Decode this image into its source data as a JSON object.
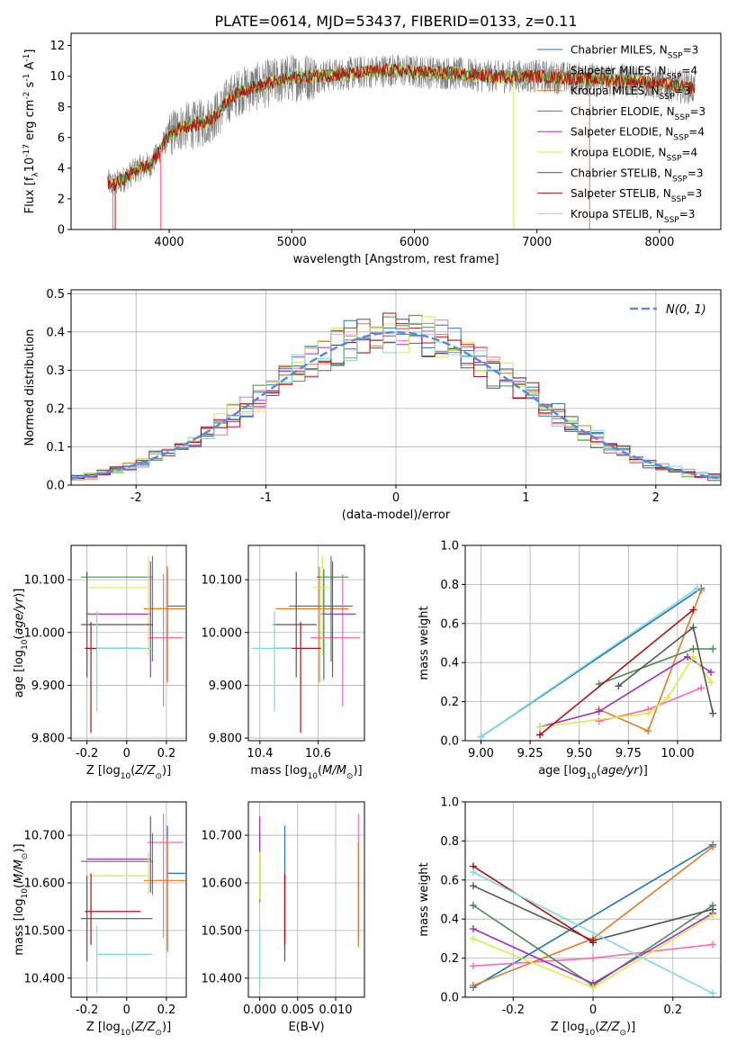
{
  "title": "PLATE=0614, MJD=53437, FIBERID=0133, z=0.11",
  "series": [
    {
      "name": "Chabrier MILES, N$_{SSP}$=3",
      "color": "#1f77b4"
    },
    {
      "name": "Salpeter MILES, N$_{SSP}$=4",
      "color": "#ff69b4"
    },
    {
      "name": "Kroupa MILES, N$_{SSP}$=3",
      "color": "#e07b28"
    },
    {
      "name": "Chabrier ELODIE, N$_{SSP}$=3",
      "color": "#4f8a57"
    },
    {
      "name": "Salpeter ELODIE, N$_{SSP}$=4",
      "color": "#a030b8"
    },
    {
      "name": "Kroupa ELODIE, N$_{SSP}$=4",
      "color": "#d6ec4a"
    },
    {
      "name": "Chabrier STELIB, N$_{SSP}$=3",
      "color": "#555555"
    },
    {
      "name": "Salpeter STELIB, N$_{SSP}$=3",
      "color": "#b01010"
    },
    {
      "name": "Kroupa STELIB, N$_{SSP}$=3",
      "color": "#7fd8e0"
    }
  ],
  "chart_data": [
    {
      "type": "line",
      "id": "spectrum",
      "title": "PLATE=0614, MJD=53437, FIBERID=0133, z=0.11",
      "xlabel": "wavelength [Angstrom, rest frame]",
      "ylabel": "Flux [f$_\\lambda$10$^{-17}$ erg cm$^{-2}$ s$^{-1}$ A$^{-1}$]",
      "xlim": [
        3200,
        8500
      ],
      "ylim": [
        0,
        12.8
      ],
      "xticks": [
        4000,
        5000,
        6000,
        7000,
        8000
      ],
      "yticks": [
        0,
        2,
        4,
        6,
        8,
        10,
        12
      ],
      "grid": false,
      "legend": "right",
      "continuum": {
        "x": [
          3450,
          3550,
          3650,
          3750,
          3850,
          3950,
          4000,
          4100,
          4200,
          4300,
          4400,
          4500,
          4600,
          4800,
          5000,
          5200,
          5500,
          5800,
          6000,
          6300,
          6600,
          7000,
          7400,
          7800,
          8300
        ],
        "y": [
          3.2,
          2.9,
          3.4,
          4.0,
          4.2,
          5.5,
          6.2,
          6.7,
          6.8,
          7.0,
          7.6,
          8.6,
          9.1,
          9.5,
          9.9,
          10.0,
          10.2,
          10.4,
          10.3,
          10.2,
          10.0,
          10.0,
          9.8,
          9.7,
          9.2
        ]
      }
    },
    {
      "type": "line",
      "id": "residuals",
      "xlabel": "(data-model)/error",
      "ylabel": "Normed distribution",
      "xlim": [
        -2.5,
        2.5
      ],
      "ylim": [
        0,
        0.51
      ],
      "xticks": [
        -2,
        -1,
        0,
        1,
        2
      ],
      "yticks": [
        0.0,
        0.1,
        0.2,
        0.3,
        0.4,
        0.5
      ],
      "grid": true,
      "reference": {
        "name": "$\\mathcal{N}(0, 1)$",
        "color": "#5b8bd6",
        "style": "dashed"
      }
    },
    {
      "type": "scatter",
      "id": "age_vs_Z",
      "xlabel": "Z [log$_{10}$($Z/Z_\\odot$)]",
      "ylabel": "age  [log$_{10}$($age/yr$)]",
      "xlim": [
        -0.28,
        0.3
      ],
      "ylim": [
        9.795,
        10.165
      ],
      "xticks": [
        -0.2,
        0.0,
        0.2
      ],
      "yticks": [
        9.8,
        9.9,
        10.0,
        10.1
      ],
      "grid": true,
      "points": [
        {
          "x": 0.205,
          "xerr": [
            0.0,
            0.09
          ],
          "y": 10.05,
          "yerr": [
            0.14,
            0.07
          ]
        },
        {
          "x": 0.185,
          "xerr": [
            0.08,
            0.1
          ],
          "y": 9.99,
          "yerr": [
            0.13,
            0.12
          ]
        },
        {
          "x": 0.205,
          "xerr": [
            0.12,
            0.09
          ],
          "y": 10.045,
          "yerr": [
            0.14,
            0.08
          ]
        },
        {
          "x": 0.13,
          "xerr": [
            0.36,
            0.0
          ],
          "y": 10.105,
          "yerr": [
            0.16,
            0.04
          ]
        },
        {
          "x": 0.12,
          "xerr": [
            0.32,
            0.0
          ],
          "y": 10.035,
          "yerr": [
            0.12,
            0.1
          ]
        },
        {
          "x": 0.11,
          "xerr": [
            0.3,
            0.0
          ],
          "y": 10.085,
          "yerr": [
            0.13,
            0.06
          ]
        },
        {
          "x": -0.2,
          "xerr": [
            0.03,
            0.33
          ],
          "y": 10.015,
          "yerr": [
            0.1,
            0.1
          ]
        },
        {
          "x": -0.18,
          "xerr": [
            0.03,
            0.25
          ],
          "y": 9.97,
          "yerr": [
            0.16,
            0.05
          ]
        },
        {
          "x": -0.15,
          "xerr": [
            0.0,
            0.28
          ],
          "y": 9.97,
          "yerr": [
            0.12,
            0.07
          ]
        }
      ]
    },
    {
      "type": "scatter",
      "id": "age_vs_mass",
      "xlabel": "mass [log$_{10}$($M/M_\\odot$)]",
      "ylabel": "",
      "xlim": [
        10.36,
        10.76
      ],
      "ylim": [
        9.795,
        10.165
      ],
      "xticks": [
        10.4,
        10.6
      ],
      "yticks": [
        9.8,
        9.9,
        10.0,
        10.1
      ],
      "grid": true,
      "points": [
        {
          "x": 10.62,
          "xerr": [
            0.12,
            0.1
          ],
          "y": 10.05,
          "yerr": [
            0.14,
            0.07
          ]
        },
        {
          "x": 10.685,
          "xerr": [
            0.11,
            0.06
          ],
          "y": 9.99,
          "yerr": [
            0.13,
            0.12
          ]
        },
        {
          "x": 10.605,
          "xerr": [
            0.15,
            0.1
          ],
          "y": 10.045,
          "yerr": [
            0.14,
            0.08
          ]
        },
        {
          "x": 10.645,
          "xerr": [
            0.05,
            0.06
          ],
          "y": 10.105,
          "yerr": [
            0.16,
            0.04
          ]
        },
        {
          "x": 10.65,
          "xerr": [
            0.04,
            0.08
          ],
          "y": 10.035,
          "yerr": [
            0.12,
            0.1
          ]
        },
        {
          "x": 10.615,
          "xerr": [
            0.03,
            0.03
          ],
          "y": 10.085,
          "yerr": [
            0.13,
            0.06
          ]
        },
        {
          "x": 10.525,
          "xerr": [
            0.08,
            0.07
          ],
          "y": 10.015,
          "yerr": [
            0.1,
            0.1
          ]
        },
        {
          "x": 10.54,
          "xerr": [
            0.09,
            0.07
          ],
          "y": 9.97,
          "yerr": [
            0.16,
            0.05
          ]
        },
        {
          "x": 10.45,
          "xerr": [
            0.08,
            0.06
          ],
          "y": 9.97,
          "yerr": [
            0.12,
            0.07
          ]
        }
      ]
    },
    {
      "type": "line",
      "id": "massweight_vs_age",
      "xlabel": "age  [log$_{10}$($age/yr$)]",
      "ylabel": "mass weight",
      "xlim": [
        8.92,
        10.22
      ],
      "ylim": [
        0,
        1.0
      ],
      "xticks": [
        9.0,
        9.25,
        9.5,
        9.75,
        10.0
      ],
      "xticklabels": [
        "9.00",
        "9.25",
        "9.50",
        "9.75",
        "10.00"
      ],
      "yticks": [
        0.0,
        0.2,
        0.4,
        0.6,
        0.8,
        1.0
      ],
      "grid": true,
      "series_points": [
        {
          "x": [
            9.0,
            10.12
          ],
          "y": [
            0.02,
            0.78
          ]
        },
        {
          "x": [
            9.6,
            9.85,
            10.12
          ],
          "y": [
            0.1,
            0.16,
            0.27
          ]
        },
        {
          "x": [
            9.6,
            9.85,
            10.12
          ],
          "y": [
            0.16,
            0.05,
            0.77
          ]
        },
        {
          "x": [
            9.6,
            10.08,
            10.18
          ],
          "y": [
            0.29,
            0.47,
            0.47
          ]
        },
        {
          "x": [
            9.3,
            9.6,
            10.05,
            10.17
          ],
          "y": [
            0.07,
            0.15,
            0.43,
            0.35
          ]
        },
        {
          "x": [
            9.3,
            9.85,
            9.95,
            10.08,
            10.17
          ],
          "y": [
            0.07,
            0.14,
            0.22,
            0.43,
            0.3
          ]
        },
        {
          "x": [
            9.7,
            10.08,
            10.18
          ],
          "y": [
            0.28,
            0.58,
            0.14
          ]
        },
        {
          "x": [
            9.3,
            10.08
          ],
          "y": [
            0.03,
            0.67
          ]
        },
        {
          "x": [
            9.0,
            10.1
          ],
          "y": [
            0.02,
            0.78
          ]
        }
      ]
    },
    {
      "type": "scatter",
      "id": "mass_vs_Z",
      "xlabel": "Z [log$_{10}$($Z/Z_\\odot$)]",
      "ylabel": "mass [log$_{10}$($M/M_\\odot$)]",
      "xlim": [
        -0.28,
        0.3
      ],
      "ylim": [
        10.36,
        10.77
      ],
      "xticks": [
        -0.2,
        0.0,
        0.2
      ],
      "yticks": [
        10.4,
        10.5,
        10.6,
        10.7
      ],
      "grid": true,
      "points": [
        {
          "x": 0.205,
          "xerr": [
            0.0,
            0.09
          ],
          "y": 10.62,
          "yerr": [
            0.16,
            0.1
          ]
        },
        {
          "x": 0.185,
          "xerr": [
            0.08,
            0.1
          ],
          "y": 10.685,
          "yerr": [
            0.2,
            0.06
          ]
        },
        {
          "x": 0.205,
          "xerr": [
            0.12,
            0.09
          ],
          "y": 10.605,
          "yerr": [
            0.15,
            0.09
          ]
        },
        {
          "x": 0.13,
          "xerr": [
            0.36,
            0.0
          ],
          "y": 10.645,
          "yerr": [
            0.07,
            0.06
          ]
        },
        {
          "x": 0.12,
          "xerr": [
            0.32,
            0.0
          ],
          "y": 10.65,
          "yerr": [
            0.07,
            0.09
          ]
        },
        {
          "x": 0.11,
          "xerr": [
            0.3,
            0.0
          ],
          "y": 10.615,
          "yerr": [
            0.04,
            0.05
          ]
        },
        {
          "x": -0.2,
          "xerr": [
            0.03,
            0.33
          ],
          "y": 10.525,
          "yerr": [
            0.09,
            0.09
          ]
        },
        {
          "x": -0.18,
          "xerr": [
            0.03,
            0.25
          ],
          "y": 10.54,
          "yerr": [
            0.07,
            0.08
          ]
        },
        {
          "x": -0.15,
          "xerr": [
            0.0,
            0.28
          ],
          "y": 10.45,
          "yerr": [
            0.08,
            0.06
          ]
        }
      ]
    },
    {
      "type": "scatter",
      "id": "mass_vs_ebv",
      "xlabel": "E(B-V)",
      "ylabel": "",
      "xlim": [
        -0.0015,
        0.0138
      ],
      "ylim": [
        10.36,
        10.77
      ],
      "xticks": [
        0.0,
        0.005,
        0.01
      ],
      "xticklabels": [
        "0.000",
        "0.005",
        "0.010"
      ],
      "yticks": [
        10.4,
        10.5,
        10.6,
        10.7
      ],
      "grid": true,
      "points": [
        {
          "x": 0.0033,
          "y": 10.62,
          "yerr": [
            0.16,
            0.1
          ]
        },
        {
          "x": 0.013,
          "y": 10.685,
          "yerr": [
            0.2,
            0.06
          ]
        },
        {
          "x": 0.013,
          "y": 10.605,
          "yerr": [
            0.14,
            0.08
          ]
        },
        {
          "x": 0.0,
          "y": 10.645,
          "yerr": [
            0.08,
            0.06
          ]
        },
        {
          "x": 0.0,
          "y": 10.65,
          "yerr": [
            0.09,
            0.09
          ]
        },
        {
          "x": 0.0,
          "y": 10.615,
          "yerr": [
            0.05,
            0.05
          ]
        },
        {
          "x": 0.0033,
          "y": 10.525,
          "yerr": [
            0.09,
            0.09
          ]
        },
        {
          "x": 0.0033,
          "y": 10.54,
          "yerr": [
            0.07,
            0.08
          ]
        },
        {
          "x": 0.0,
          "y": 10.45,
          "yerr": [
            0.07,
            0.06
          ]
        }
      ]
    },
    {
      "type": "line",
      "id": "massweight_vs_Z",
      "xlabel": "Z [log$_{10}$($Z/Z_\\odot$)]",
      "ylabel": "mass weight",
      "xlim": [
        -0.32,
        0.32
      ],
      "ylim": [
        0,
        1.0
      ],
      "xticks": [
        -0.2,
        0.0,
        0.2
      ],
      "yticks": [
        0.0,
        0.2,
        0.4,
        0.6,
        0.8,
        1.0
      ],
      "grid": true,
      "series_points": [
        {
          "x": [
            -0.3,
            0.3
          ],
          "y": [
            0.05,
            0.78
          ]
        },
        {
          "x": [
            -0.3,
            0.0,
            0.3
          ],
          "y": [
            0.16,
            0.2,
            0.27
          ]
        },
        {
          "x": [
            -0.3,
            0.0,
            0.3
          ],
          "y": [
            0.06,
            0.3,
            0.77
          ]
        },
        {
          "x": [
            -0.3,
            0.0,
            0.3
          ],
          "y": [
            0.47,
            0.06,
            0.47
          ]
        },
        {
          "x": [
            -0.3,
            0.0,
            0.3
          ],
          "y": [
            0.35,
            0.07,
            0.43
          ]
        },
        {
          "x": [
            -0.3,
            0.0,
            0.3
          ],
          "y": [
            0.3,
            0.05,
            0.42
          ]
        },
        {
          "x": [
            -0.3,
            0.0,
            0.3
          ],
          "y": [
            0.57,
            0.29,
            0.45
          ]
        },
        {
          "x": [
            -0.3,
            0.0
          ],
          "y": [
            0.67,
            0.28
          ]
        },
        {
          "x": [
            -0.3,
            0.3
          ],
          "y": [
            0.64,
            0.02
          ]
        }
      ]
    }
  ]
}
